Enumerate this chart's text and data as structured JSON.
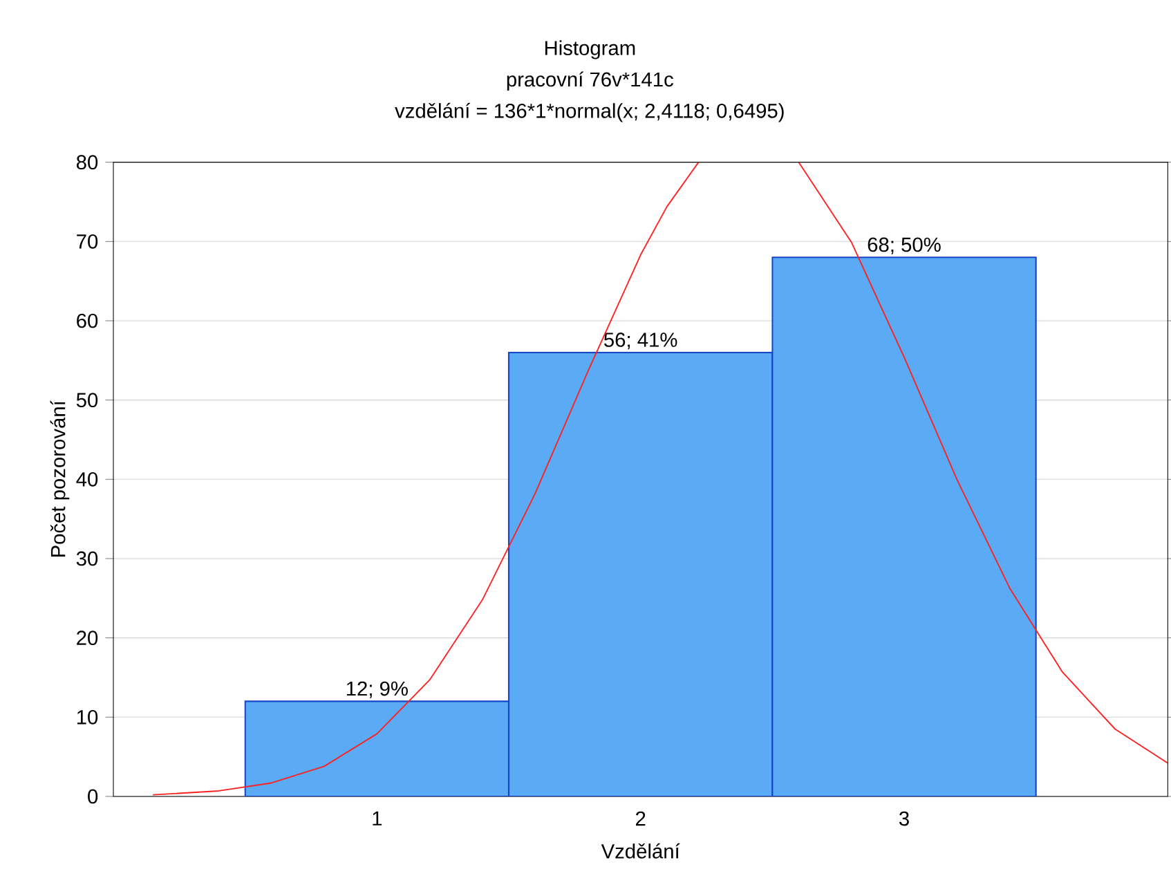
{
  "chart_data": {
    "type": "histogram",
    "title": "Histogram",
    "subtitle": "pracovní 76v*141c",
    "annotations": [
      "vzdělání = 136*1*normal(x; 2,4118; 0,6495)"
    ],
    "xlabel": "Vzdělání",
    "ylabel": "Počet pozorování",
    "bins": [
      0.5,
      1.5,
      2.5,
      3.5
    ],
    "series": [
      {
        "color": "#5aaaf5",
        "values": [
          12,
          56,
          68
        ],
        "value_labels": [
          "12; 9%",
          "56; 41%",
          "68; 50%"
        ]
      },
      {
        "type": "line",
        "color": "#ff2020",
        "x": [
          0.15,
          0.4,
          0.6,
          0.8,
          1.0,
          1.2,
          1.4,
          1.6,
          1.8,
          2.0,
          2.1,
          2.22,
          2.4,
          2.6,
          2.8,
          3.0,
          3.2,
          3.4,
          3.6,
          3.8,
          4.0
        ],
        "values": [
          0.2,
          0.7,
          1.7,
          3.8,
          7.9,
          14.7,
          24.8,
          38.2,
          53.6,
          68.3,
          74.4,
          80,
          null,
          80,
          69.9,
          55.4,
          40.0,
          26.3,
          15.7,
          8.5,
          4.2
        ]
      }
    ],
    "xlim": [
      0,
      4
    ],
    "ylim": [
      0,
      80
    ],
    "xticks": [
      1,
      2,
      3
    ],
    "yticks": [
      0,
      10,
      20,
      30,
      40,
      50,
      60,
      70,
      80
    ],
    "grid": "y"
  }
}
